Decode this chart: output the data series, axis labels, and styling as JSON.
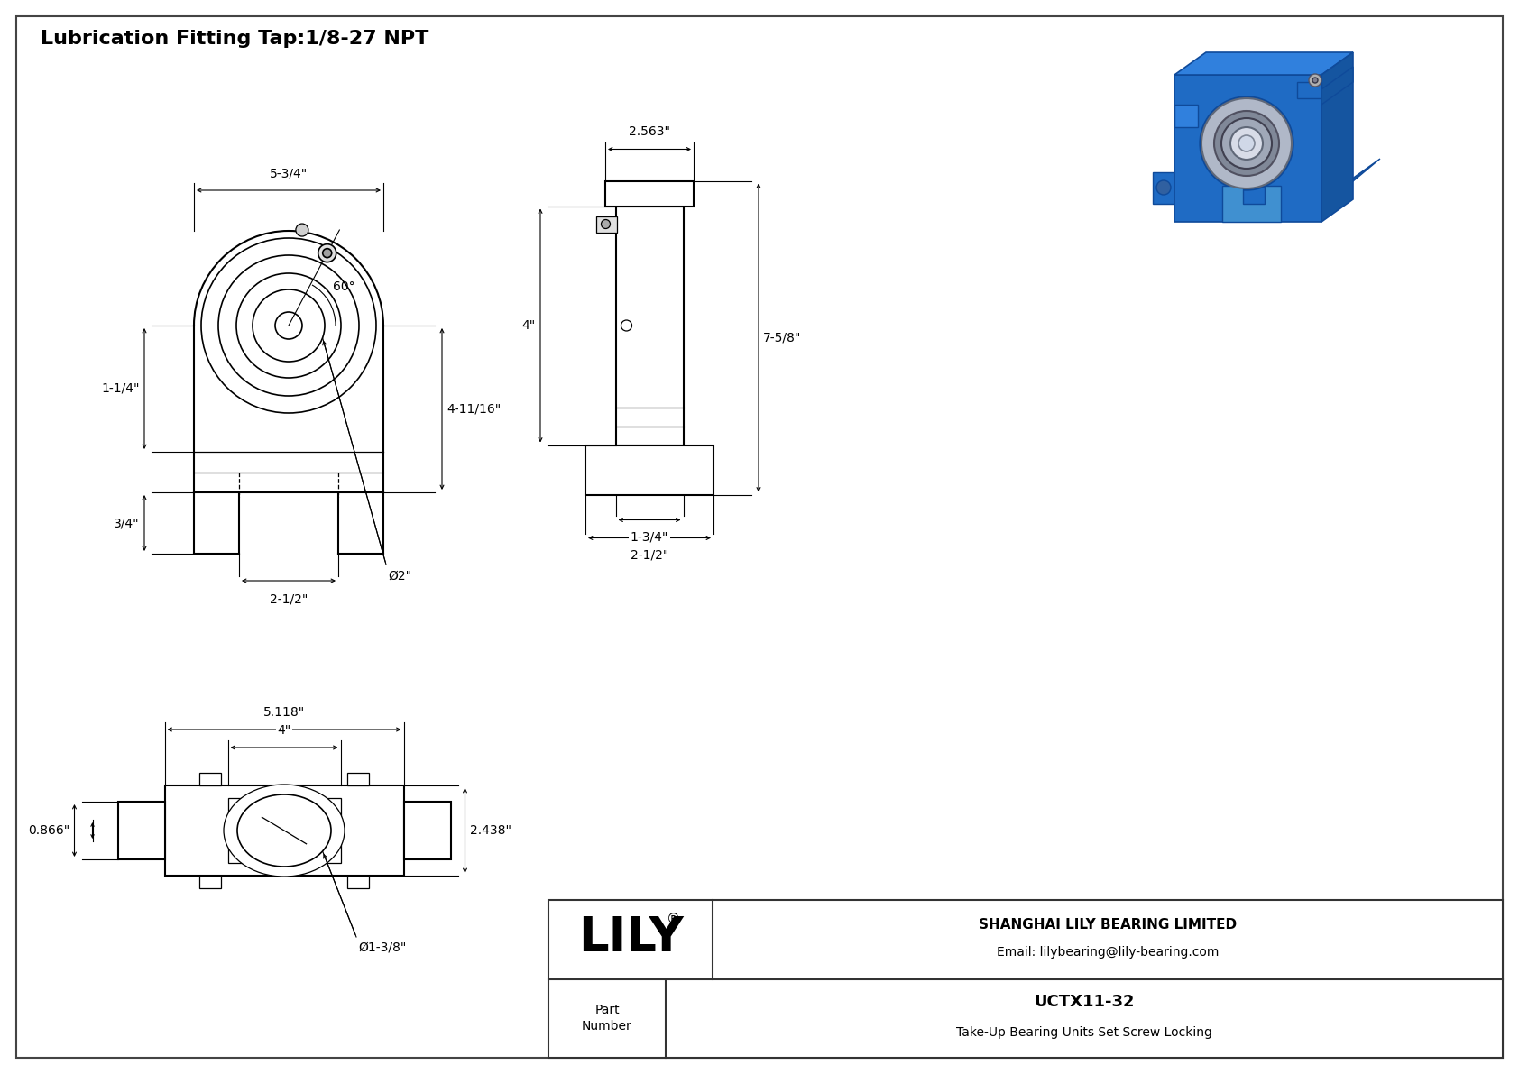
{
  "title": "Lubrication Fitting Tap:1/8-27 NPT",
  "bg_color": "#ffffff",
  "line_color": "#000000",
  "title_fontsize": 16,
  "dim_fontsize": 10,
  "border_color": "#444444",
  "company_name": "SHANGHAI LILY BEARING LIMITED",
  "company_email": "Email: lilybearing@lily-bearing.com",
  "lily_logo": "LILY",
  "part_label": "Part\nNumber",
  "part_number": "UCTX11-32",
  "part_desc": "Take-Up Bearing Units Set Screw Locking",
  "iso_blue_main": "#1f6bc4",
  "iso_blue_light": "#3080dd",
  "iso_blue_dark": "#0f4a9a",
  "iso_blue_side": "#1555a0",
  "iso_silver": "#b0b8c8",
  "iso_silver_dark": "#808898",
  "iso_silver_light": "#d8dce8"
}
